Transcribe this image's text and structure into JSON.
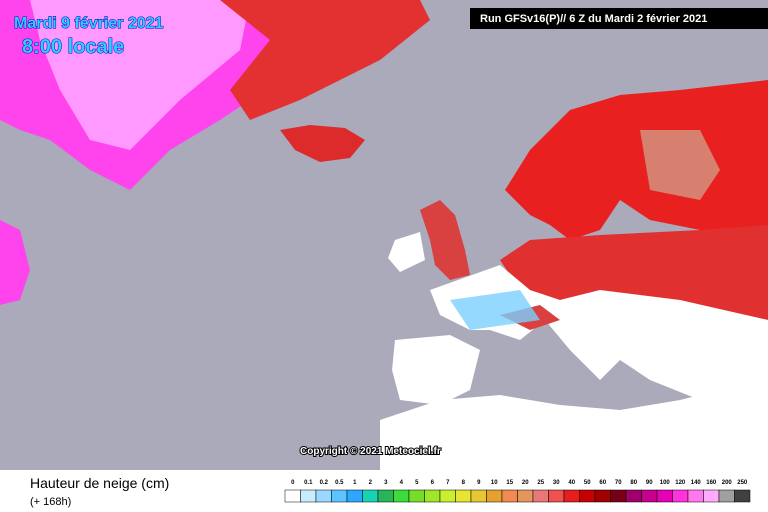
{
  "header": {
    "date": "Mardi 9 février 2021",
    "time": "8:00 locale",
    "run": "Run GFSv16(P)// 6 Z du Mardi 2 février 2021"
  },
  "copyright": "Copyright © 2021 Meteociel.fr",
  "legend": {
    "title": "Hauteur de neige (cm)",
    "subtitle": "(+ 168h)",
    "items": [
      {
        "label": "0",
        "color": "#ffffff"
      },
      {
        "label": "0.1",
        "color": "#c8ecff"
      },
      {
        "label": "0.2",
        "color": "#9ad9ff"
      },
      {
        "label": "0.5",
        "color": "#5ec4ff"
      },
      {
        "label": "1",
        "color": "#2aa8ff"
      },
      {
        "label": "2",
        "color": "#19d2b4"
      },
      {
        "label": "3",
        "color": "#2ab45a"
      },
      {
        "label": "4",
        "color": "#3cdc3c"
      },
      {
        "label": "5",
        "color": "#78dc28"
      },
      {
        "label": "6",
        "color": "#a0e628"
      },
      {
        "label": "7",
        "color": "#c8f032"
      },
      {
        "label": "8",
        "color": "#e6e632"
      },
      {
        "label": "9",
        "color": "#e6c832"
      },
      {
        "label": "10",
        "color": "#e6a032"
      },
      {
        "label": "15",
        "color": "#f08c50"
      },
      {
        "label": "20",
        "color": "#e6965a"
      },
      {
        "label": "25",
        "color": "#e87878"
      },
      {
        "label": "30",
        "color": "#f05050"
      },
      {
        "label": "40",
        "color": "#e61e1e"
      },
      {
        "label": "50",
        "color": "#c80000"
      },
      {
        "label": "60",
        "color": "#a00000"
      },
      {
        "label": "70",
        "color": "#780014"
      },
      {
        "label": "80",
        "color": "#a0006e"
      },
      {
        "label": "90",
        "color": "#c8008c"
      },
      {
        "label": "100",
        "color": "#e600b4"
      },
      {
        "label": "120",
        "color": "#ff32dc"
      },
      {
        "label": "140",
        "color": "#ff78f0"
      },
      {
        "label": "160",
        "color": "#ffaaff"
      },
      {
        "label": "200",
        "color": "#a0a0a0"
      },
      {
        "label": "250",
        "color": "#404040"
      }
    ]
  }
}
